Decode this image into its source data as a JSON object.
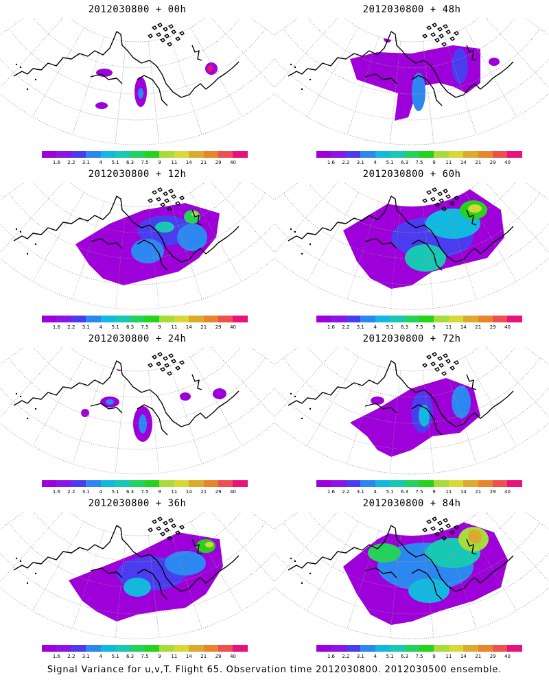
{
  "caption": "Signal Variance for u,v,T. Flight 65. Observation time 2012030800. 2012030500 ensemble.",
  "colorbar": {
    "labels": [
      "1.6",
      "2.2",
      "3.1",
      "4",
      "5.1",
      "6.3",
      "7.5",
      "9",
      "11",
      "14",
      "21",
      "29",
      "40"
    ],
    "colors": [
      "#9d00d8",
      "#8c14e6",
      "#4b3cf0",
      "#2c88f0",
      "#12b8e0",
      "#18c8b4",
      "#22d25a",
      "#26d21a",
      "#a8dc3a",
      "#d8d838",
      "#dcaa2e",
      "#e8842c",
      "#ee5050",
      "#e8127a"
    ]
  },
  "panels": [
    {
      "title": "2012030800 + 00h",
      "level": 0
    },
    {
      "title": "2012030800 + 48h",
      "level": 4
    },
    {
      "title": "2012030800 + 12h",
      "level": 1
    },
    {
      "title": "2012030800 + 60h",
      "level": 5
    },
    {
      "title": "2012030800 + 24h",
      "level": 2
    },
    {
      "title": "2012030800 + 72h",
      "level": 6
    },
    {
      "title": "2012030800 + 36h",
      "level": 3
    },
    {
      "title": "2012030800 + 84h",
      "level": 7
    }
  ]
}
